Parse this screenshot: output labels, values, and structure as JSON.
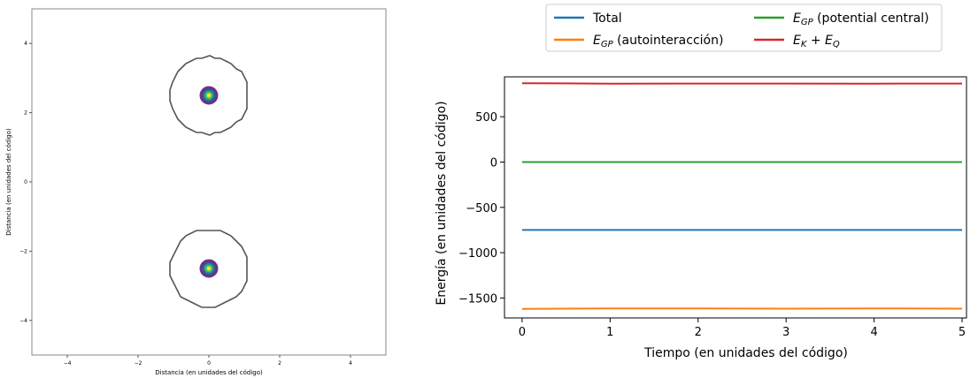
{
  "chart_data": [
    {
      "type": "contour",
      "xlabel": "Distancia (en unidades del código)",
      "ylabel": "Distancia (en unidades del código)",
      "xlim": [
        -5,
        5
      ],
      "ylim": [
        -5,
        5
      ],
      "xticks": [
        -4,
        -2,
        0,
        2,
        4
      ],
      "yticks": [
        -4,
        -2,
        0,
        2,
        4
      ],
      "blobs": [
        {
          "center": [
            0,
            2.5
          ],
          "outer_radius": 1.1
        },
        {
          "center": [
            0,
            -2.5
          ],
          "outer_radius": 1.1
        }
      ],
      "colors": {
        "outer_contour": "#555555",
        "rings": [
          "#6a2d8f",
          "#3b528b",
          "#21918c",
          "#5ec962",
          "#fde725"
        ]
      }
    },
    {
      "type": "line",
      "xlabel": "Tiempo (en unidades del código)",
      "ylabel": "Energía (en unidades del código)",
      "xlim": [
        -0.2,
        5.05
      ],
      "ylim": [
        -1720,
        940
      ],
      "xticks": [
        0,
        1,
        2,
        3,
        4,
        5
      ],
      "yticks": [
        -1500,
        -1000,
        -500,
        0,
        500
      ],
      "yticklabels": [
        "−1500",
        "−1000",
        "−500",
        "0",
        "500"
      ],
      "x": [
        0,
        1,
        2,
        3,
        4,
        5
      ],
      "series": [
        {
          "name": "Total",
          "color": "#1f77b4",
          "values": [
            -750,
            -750,
            -750,
            -750,
            -750,
            -750
          ]
        },
        {
          "name": "E_GP (autointeracción)",
          "color": "#ff7f0e",
          "values": [
            -1620,
            -1615,
            -1615,
            -1618,
            -1615,
            -1618
          ]
        },
        {
          "name": "E_GP (potential central)",
          "color": "#2ca02c",
          "values": [
            0,
            0,
            0,
            0,
            0,
            0
          ]
        },
        {
          "name": "E_K + E_Q",
          "color": "#d62728",
          "values": [
            870,
            865,
            866,
            866,
            865,
            866
          ]
        }
      ],
      "legend": {
        "placement": "top",
        "entries": [
          {
            "main": "Total"
          },
          {
            "main": "E",
            "sub": "GP",
            "rest": " (autointeracción)"
          },
          {
            "main": "E",
            "sub": "GP",
            "rest": " (potential central)"
          },
          {
            "main": "E",
            "sub": "K",
            "rest": " + E",
            "sub2": "Q"
          }
        ]
      }
    }
  ]
}
